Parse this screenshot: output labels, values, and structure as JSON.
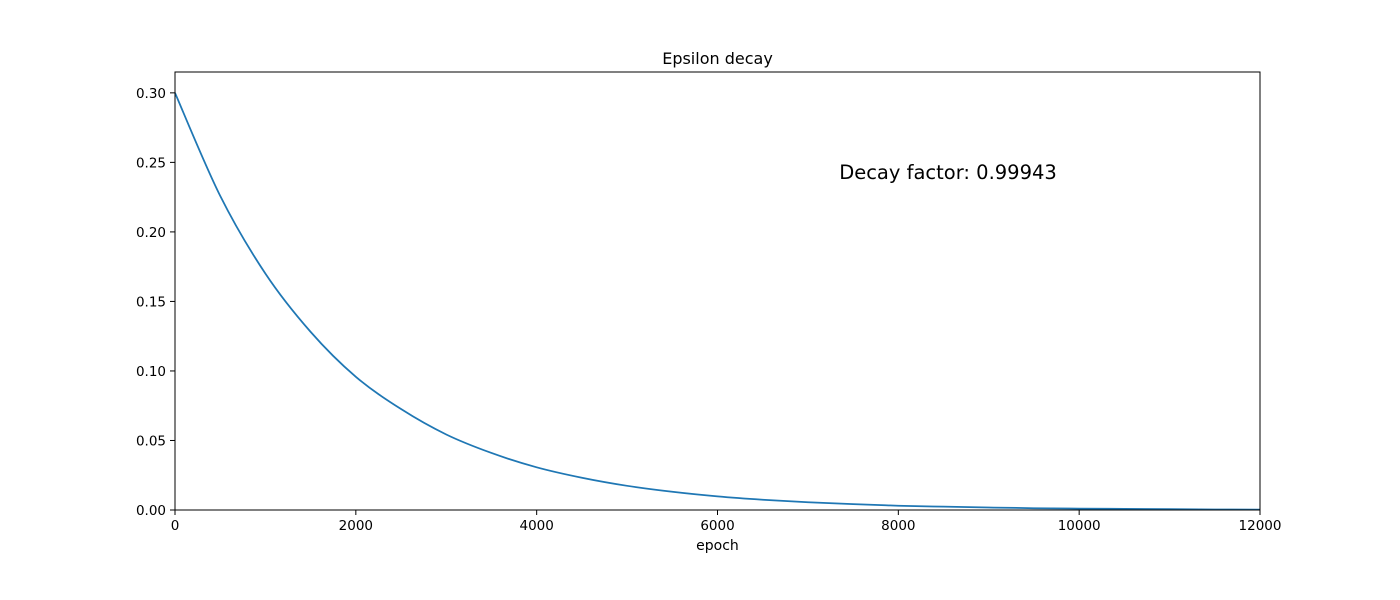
{
  "chart_data": {
    "type": "line",
    "title": "Epsilon decay",
    "xlabel": "epoch",
    "ylabel": "",
    "xlim": [
      0,
      12000
    ],
    "ylim": [
      0,
      0.315
    ],
    "x_ticks": [
      0,
      2000,
      4000,
      6000,
      8000,
      10000,
      12000
    ],
    "x_tick_labels": [
      "0",
      "2000",
      "4000",
      "6000",
      "8000",
      "10000",
      "12000"
    ],
    "y_ticks": [
      0.0,
      0.05,
      0.1,
      0.15,
      0.2,
      0.25,
      0.3
    ],
    "y_tick_labels": [
      "0.00",
      "0.05",
      "0.10",
      "0.15",
      "0.20",
      "0.25",
      "0.30"
    ],
    "grid": false,
    "legend": "none",
    "annotation": {
      "text": "Decay factor: 0.99943"
    },
    "series": [
      {
        "color": "#1f77b4",
        "x": [
          0,
          500,
          1000,
          1500,
          2000,
          2500,
          3000,
          3500,
          4000,
          4500,
          5000,
          5500,
          6000,
          6500,
          7000,
          7500,
          8000,
          8500,
          9000,
          9500,
          10000,
          10500,
          11000,
          11500,
          12000
        ],
        "y": [
          0.3,
          0.2259,
          0.17,
          0.1281,
          0.0958,
          0.0726,
          0.0543,
          0.041,
          0.0307,
          0.0232,
          0.0174,
          0.0131,
          0.0098,
          0.0074,
          0.0056,
          0.0042,
          0.0031,
          0.0024,
          0.0018,
          0.0013,
          0.001,
          0.0008,
          0.0006,
          0.0004,
          0.0003
        ]
      }
    ]
  }
}
